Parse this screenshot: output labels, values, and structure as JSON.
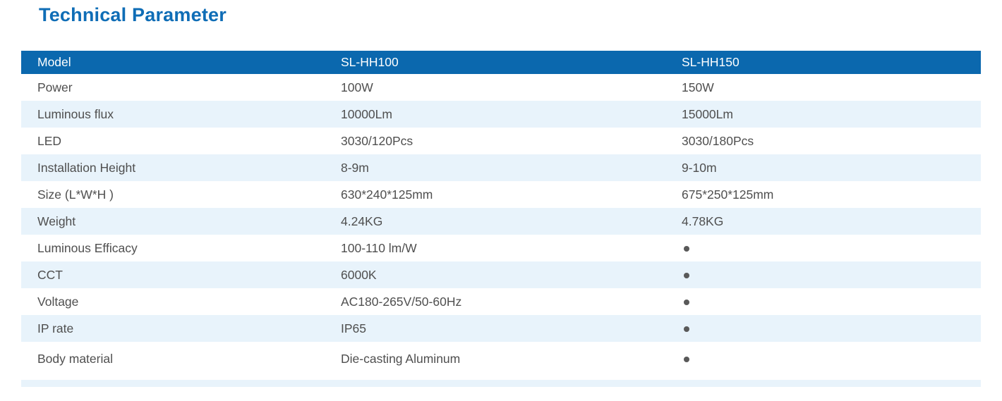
{
  "page": {
    "title": "Technical Parameter"
  },
  "colors": {
    "header_blue": "#0b68ae",
    "title_blue": "#0f6db6",
    "row_alt": "#e8f3fb",
    "text_gray": "#4f4f4f",
    "dot_gray": "#595959"
  },
  "table": {
    "header": {
      "col1": "Model",
      "col2": "SL-HH100",
      "col3": "SL-HH150"
    },
    "rows": [
      {
        "label": "Power",
        "col2": "100W",
        "col3": "150W"
      },
      {
        "label": "Luminous flux",
        "col2": "10000Lm",
        "col3": "15000Lm"
      },
      {
        "label": "LED",
        "col2": "3030/120Pcs",
        "col3": "3030/180Pcs"
      },
      {
        "label": "Installation Height",
        "col2": "8-9m",
        "col3": "9-10m"
      },
      {
        "label": "Size (L*W*H )",
        "col2": "630*240*125mm",
        "col3": "●"
      },
      {
        "label": "Weight",
        "col2": "4.24KG",
        "col3": "●"
      },
      {
        "label": "Luminous Efficacy",
        "col2": "100-110 lm/W",
        "col3": "●"
      },
      {
        "label": "CCT",
        "col2": "6000K",
        "col3": "●"
      },
      {
        "label": "Voltage",
        "col2": "AC180-265V/50-60Hz",
        "col3": "●"
      },
      {
        "label": "IP rate",
        "col2": "IP65",
        "col3": "●"
      },
      {
        "label": "Body material",
        "col2": "Die-casting Aluminum",
        "col3": "●"
      }
    ],
    "row_overrides": {
      "4": "675*250*125mm",
      "5": "4.78KG"
    }
  }
}
